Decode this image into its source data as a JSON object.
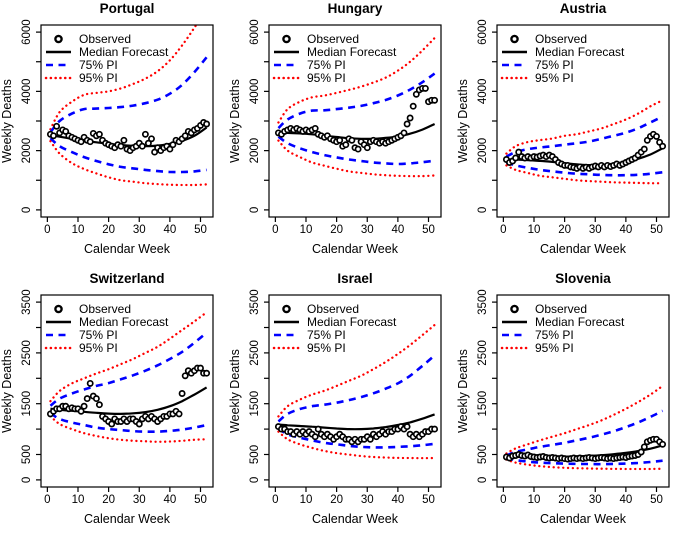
{
  "figure": {
    "background": "#ffffff",
    "axis_color": "#000000",
    "xlabel": "Calendar Week",
    "ylabel": "Weekly Deaths",
    "xticks": [
      0,
      10,
      20,
      30,
      40,
      50
    ],
    "legend": {
      "position": "topleft",
      "items": [
        {
          "label": "Observed",
          "style": "point",
          "color": "#000000"
        },
        {
          "label": "Median Forecast",
          "style": "solid",
          "color": "#000000"
        },
        {
          "label": "75% PI",
          "style": "dashed",
          "color": "#0000ff"
        },
        {
          "label": "95% PI",
          "style": "dotted",
          "color": "#ff0000"
        }
      ]
    }
  },
  "chart_data": [
    {
      "type": "line",
      "title": "Portugal",
      "xlabel": "Calendar Week",
      "ylabel": "Weekly Deaths",
      "xlim": [
        0,
        52
      ],
      "ylim": [
        0,
        6000
      ],
      "xticks": [
        0,
        10,
        20,
        30,
        40,
        50
      ],
      "ytick_step": 1000,
      "yticks_labeled": [
        0,
        2000,
        4000,
        6000
      ],
      "grid": false,
      "sample_weeks": [
        1,
        4,
        8,
        12,
        16,
        20,
        24,
        28,
        32,
        36,
        40,
        44,
        48,
        52
      ],
      "median": [
        2520,
        2470,
        2400,
        2330,
        2280,
        2230,
        2190,
        2160,
        2150,
        2170,
        2230,
        2330,
        2500,
        2780
      ],
      "pi75_upper": [
        2620,
        3000,
        3250,
        3400,
        3420,
        3440,
        3470,
        3520,
        3600,
        3720,
        3920,
        4220,
        4650,
        5150
      ],
      "pi75_lower": [
        2420,
        2150,
        1950,
        1780,
        1650,
        1540,
        1450,
        1400,
        1350,
        1310,
        1280,
        1280,
        1300,
        1350
      ],
      "pi95_upper": [
        2720,
        3300,
        3650,
        3880,
        3950,
        4000,
        4100,
        4250,
        4430,
        4680,
        5050,
        5550,
        6150,
        6800
      ],
      "pi95_lower": [
        2320,
        1900,
        1580,
        1380,
        1230,
        1100,
        1000,
        950,
        900,
        870,
        850,
        840,
        840,
        860
      ],
      "observed": [
        2550,
        2500,
        2820,
        2600,
        2700,
        2650,
        2500,
        2450,
        2400,
        2350,
        2300,
        2450,
        2350,
        2300,
        2580,
        2500,
        2550,
        2350,
        2250,
        2200,
        2150,
        2100,
        2200,
        2150,
        2350,
        2050,
        2000,
        2100,
        2150,
        2250,
        2150,
        2550,
        2250,
        2400,
        1950,
        2100,
        2000,
        2100,
        2150,
        2050,
        2200,
        2350,
        2300,
        2400,
        2500,
        2650,
        2600,
        2700,
        2750,
        2850,
        2950,
        2900
      ]
    },
    {
      "type": "line",
      "title": "Hungary",
      "xlabel": "Calendar Week",
      "ylabel": "Weekly Deaths",
      "xlim": [
        0,
        52
      ],
      "ylim": [
        0,
        6000
      ],
      "xticks": [
        0,
        10,
        20,
        30,
        40,
        50
      ],
      "ytick_step": 1000,
      "yticks_labeled": [
        0,
        2000,
        4000,
        6000
      ],
      "grid": false,
      "sample_weeks": [
        1,
        4,
        8,
        12,
        16,
        20,
        24,
        28,
        32,
        36,
        40,
        44,
        48,
        52
      ],
      "median": [
        2620,
        2600,
        2580,
        2550,
        2500,
        2460,
        2420,
        2400,
        2400,
        2430,
        2480,
        2570,
        2710,
        2900
      ],
      "pi75_upper": [
        2760,
        3050,
        3250,
        3350,
        3360,
        3400,
        3450,
        3510,
        3600,
        3710,
        3860,
        4060,
        4310,
        4600
      ],
      "pi75_lower": [
        2470,
        2250,
        2080,
        1950,
        1850,
        1770,
        1700,
        1650,
        1600,
        1570,
        1550,
        1570,
        1610,
        1660
      ],
      "pi95_upper": [
        2950,
        3400,
        3650,
        3800,
        3860,
        3950,
        4050,
        4160,
        4300,
        4460,
        4700,
        5000,
        5380,
        5800
      ],
      "pi95_lower": [
        2340,
        2000,
        1780,
        1600,
        1490,
        1390,
        1300,
        1250,
        1200,
        1170,
        1150,
        1140,
        1140,
        1160
      ],
      "observed": [
        2600,
        2550,
        2650,
        2700,
        2750,
        2700,
        2750,
        2700,
        2650,
        2700,
        2650,
        2700,
        2750,
        2550,
        2500,
        2450,
        2500,
        2400,
        2350,
        2300,
        2350,
        2150,
        2200,
        2400,
        2350,
        2100,
        2050,
        2300,
        2200,
        2100,
        2300,
        2350,
        2300,
        2250,
        2300,
        2250,
        2300,
        2350,
        2400,
        2450,
        2500,
        2600,
        2900,
        3100,
        3500,
        3900,
        4050,
        4100,
        4100,
        3650,
        3700,
        3700
      ]
    },
    {
      "type": "line",
      "title": "Austria",
      "xlabel": "Calendar Week",
      "ylabel": "Weekly Deaths",
      "xlim": [
        0,
        52
      ],
      "ylim": [
        0,
        6000
      ],
      "xticks": [
        0,
        10,
        20,
        30,
        40,
        50
      ],
      "ytick_step": 1000,
      "yticks_labeled": [
        0,
        2000,
        4000,
        6000
      ],
      "grid": false,
      "sample_weeks": [
        1,
        4,
        8,
        12,
        16,
        20,
        24,
        28,
        32,
        36,
        40,
        44,
        48,
        52
      ],
      "median": [
        1700,
        1700,
        1680,
        1655,
        1620,
        1575,
        1535,
        1510,
        1520,
        1560,
        1625,
        1725,
        1870,
        2080
      ],
      "pi75_upper": [
        1800,
        1950,
        2050,
        2105,
        2150,
        2200,
        2250,
        2305,
        2400,
        2500,
        2605,
        2755,
        2950,
        3150
      ],
      "pi75_lower": [
        1600,
        1500,
        1420,
        1350,
        1300,
        1255,
        1220,
        1200,
        1180,
        1170,
        1170,
        1185,
        1220,
        1270
      ],
      "pi95_upper": [
        1900,
        2150,
        2290,
        2355,
        2410,
        2500,
        2555,
        2650,
        2750,
        2895,
        3050,
        3250,
        3495,
        3700
      ],
      "pi95_lower": [
        1500,
        1350,
        1245,
        1150,
        1100,
        1050,
        1000,
        970,
        950,
        930,
        920,
        910,
        900,
        900
      ],
      "observed": [
        1700,
        1600,
        1650,
        1750,
        1950,
        1800,
        1750,
        1800,
        1750,
        1800,
        1780,
        1820,
        1850,
        1800,
        1850,
        1800,
        1700,
        1600,
        1550,
        1500,
        1500,
        1450,
        1430,
        1400,
        1450,
        1400,
        1440,
        1400,
        1450,
        1480,
        1450,
        1500,
        1450,
        1500,
        1460,
        1500,
        1550,
        1500,
        1550,
        1600,
        1650,
        1700,
        1750,
        1850,
        1950,
        2050,
        2350,
        2480,
        2550,
        2480,
        2280,
        2150
      ]
    },
    {
      "type": "line",
      "title": "Switzerland",
      "xlabel": "Calendar Week",
      "ylabel": "Weekly Deaths",
      "xlim": [
        0,
        52
      ],
      "ylim": [
        0,
        3500
      ],
      "xticks": [
        0,
        10,
        20,
        30,
        40,
        50
      ],
      "ytick_step": 500,
      "yticks_labeled": [
        0,
        500,
        1500,
        2500,
        3500
      ],
      "grid": false,
      "sample_weeks": [
        1,
        4,
        8,
        12,
        16,
        20,
        24,
        28,
        32,
        36,
        40,
        44,
        48,
        52
      ],
      "median": [
        1400,
        1380,
        1360,
        1340,
        1320,
        1305,
        1300,
        1310,
        1335,
        1380,
        1450,
        1550,
        1680,
        1820
      ],
      "pi75_upper": [
        1460,
        1600,
        1700,
        1780,
        1850,
        1905,
        1980,
        2060,
        2150,
        2255,
        2380,
        2520,
        2700,
        2900
      ],
      "pi75_lower": [
        1310,
        1200,
        1130,
        1080,
        1030,
        1000,
        980,
        960,
        950,
        950,
        965,
        990,
        1030,
        1080
      ],
      "pi95_upper": [
        1550,
        1750,
        1900,
        2000,
        2095,
        2180,
        2280,
        2380,
        2500,
        2620,
        2780,
        2950,
        3120,
        3300
      ],
      "pi95_lower": [
        1255,
        1100,
        1000,
        920,
        865,
        820,
        790,
        770,
        760,
        750,
        755,
        770,
        790,
        800
      ],
      "observed": [
        1300,
        1350,
        1400,
        1400,
        1450,
        1450,
        1400,
        1420,
        1400,
        1400,
        1350,
        1450,
        1600,
        1900,
        1650,
        1600,
        1480,
        1250,
        1200,
        1150,
        1100,
        1200,
        1150,
        1150,
        1200,
        1150,
        1200,
        1200,
        1150,
        1100,
        1200,
        1250,
        1200,
        1250,
        1200,
        1150,
        1200,
        1250,
        1250,
        1300,
        1300,
        1350,
        1300,
        1700,
        2050,
        2150,
        2100,
        2150,
        2200,
        2200,
        2100,
        2100
      ]
    },
    {
      "type": "line",
      "title": "Israel",
      "xlabel": "Calendar Week",
      "ylabel": "Weekly Deaths",
      "xlim": [
        0,
        52
      ],
      "ylim": [
        0,
        3500
      ],
      "xticks": [
        0,
        10,
        20,
        30,
        40,
        50
      ],
      "ytick_step": 500,
      "yticks_labeled": [
        0,
        500,
        1500,
        2500,
        3500
      ],
      "grid": false,
      "sample_weeks": [
        1,
        4,
        8,
        12,
        16,
        20,
        24,
        28,
        32,
        36,
        40,
        44,
        48,
        52
      ],
      "median": [
        1090,
        1075,
        1060,
        1048,
        1030,
        1012,
        1000,
        1000,
        1012,
        1040,
        1080,
        1132,
        1205,
        1290
      ],
      "pi75_upper": [
        1150,
        1300,
        1395,
        1450,
        1480,
        1520,
        1570,
        1630,
        1705,
        1795,
        1900,
        2050,
        2245,
        2450
      ],
      "pi75_lower": [
        1005,
        900,
        830,
        778,
        730,
        700,
        670,
        650,
        640,
        640,
        650,
        662,
        682,
        710
      ],
      "pi95_upper": [
        1250,
        1450,
        1580,
        1680,
        1755,
        1850,
        1950,
        2050,
        2180,
        2320,
        2480,
        2655,
        2850,
        3050
      ],
      "pi95_lower": [
        950,
        800,
        700,
        630,
        570,
        528,
        498,
        470,
        450,
        440,
        432,
        430,
        428,
        430
      ],
      "observed": [
        1050,
        1000,
        1000,
        950,
        950,
        900,
        950,
        900,
        950,
        900,
        950,
        900,
        850,
        1000,
        900,
        850,
        900,
        850,
        800,
        850,
        900,
        850,
        800,
        800,
        750,
        800,
        750,
        800,
        800,
        850,
        800,
        900,
        850,
        900,
        950,
        900,
        950,
        950,
        1000,
        1000,
        1050,
        1000,
        1050,
        900,
        850,
        900,
        850,
        900,
        950,
        950,
        1000,
        1000
      ]
    },
    {
      "type": "line",
      "title": "Slovenia",
      "xlabel": "Calendar Week",
      "ylabel": "Weekly Deaths",
      "xlim": [
        0,
        52
      ],
      "ylim": [
        0,
        3500
      ],
      "xticks": [
        0,
        10,
        20,
        30,
        40,
        50
      ],
      "ytick_step": 500,
      "yticks_labeled": [
        0,
        500,
        1500,
        2500,
        3500
      ],
      "grid": false,
      "sample_weeks": [
        1,
        4,
        8,
        12,
        16,
        20,
        24,
        28,
        32,
        36,
        40,
        44,
        48,
        52
      ],
      "median": [
        460,
        455,
        450,
        450,
        452,
        456,
        462,
        472,
        486,
        506,
        532,
        566,
        615,
        680
      ],
      "pi75_upper": [
        482,
        550,
        602,
        650,
        690,
        730,
        780,
        830,
        890,
        958,
        1040,
        1130,
        1240,
        1360
      ],
      "pi75_lower": [
        432,
        390,
        360,
        340,
        330,
        320,
        315,
        312,
        310,
        314,
        322,
        333,
        352,
        378
      ],
      "pi95_upper": [
        520,
        620,
        702,
        780,
        850,
        920,
        1000,
        1080,
        1172,
        1280,
        1400,
        1532,
        1680,
        1850
      ],
      "pi95_lower": [
        400,
        340,
        300,
        270,
        250,
        238,
        230,
        224,
        220,
        217,
        215,
        214,
        215,
        220
      ],
      "observed": [
        450,
        430,
        470,
        480,
        500,
        480,
        470,
        490,
        460,
        450,
        440,
        450,
        460,
        440,
        430,
        440,
        430,
        420,
        430,
        420,
        410,
        420,
        430,
        420,
        430,
        420,
        430,
        440,
        430,
        420,
        430,
        440,
        430,
        420,
        430,
        420,
        430,
        440,
        450,
        440,
        460,
        470,
        480,
        500,
        550,
        650,
        750,
        780,
        800,
        800,
        750,
        700
      ]
    }
  ]
}
